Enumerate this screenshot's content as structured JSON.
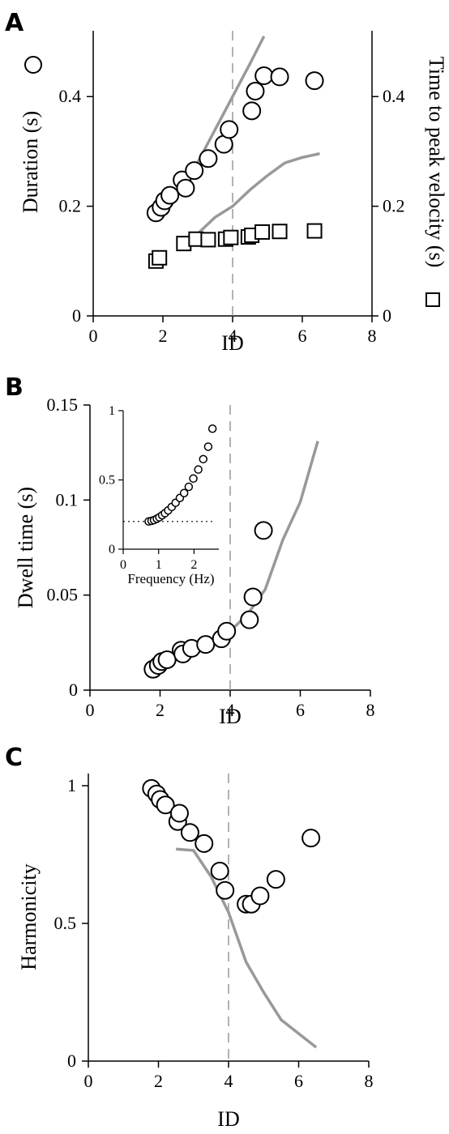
{
  "chart_data": [
    {
      "panel": "A",
      "type": "scatter",
      "xlabel": "ID",
      "ylabel_left": "Duration (s)",
      "ylabel_right": "Time to peak velocity (s)",
      "xlim": [
        0,
        8
      ],
      "ylim": [
        0,
        0.52
      ],
      "x_ticks": [
        "0",
        "2",
        "4",
        "6",
        "8"
      ],
      "y_ticks_left": [
        "0",
        "0.2",
        "0.4"
      ],
      "y_ticks_right": [
        "0",
        "0.2",
        "0.4"
      ],
      "vline_x": 4,
      "legend_markers": [
        "circle",
        "square"
      ],
      "series": [
        {
          "marker": "circle",
          "x": [
            1.8,
            1.95,
            2.05,
            2.2,
            2.55,
            2.65,
            2.9,
            3.3,
            3.75,
            3.9,
            4.55,
            4.65,
            4.9,
            5.35,
            6.35
          ],
          "y": [
            0.188,
            0.198,
            0.21,
            0.22,
            0.248,
            0.233,
            0.265,
            0.287,
            0.313,
            0.34,
            0.374,
            0.41,
            0.438,
            0.436,
            0.429
          ]
        },
        {
          "marker": "square",
          "x": [
            1.8,
            1.9,
            2.6,
            2.95,
            3.3,
            3.8,
            3.95,
            4.45,
            4.55,
            4.85,
            5.35,
            6.35
          ],
          "y": [
            0.1,
            0.106,
            0.132,
            0.14,
            0.139,
            0.14,
            0.143,
            0.144,
            0.147,
            0.153,
            0.154,
            0.155
          ]
        },
        {
          "marker": "line",
          "x": [
            2.5,
            3.0,
            3.5,
            4.0,
            4.5,
            4.9
          ],
          "y": [
            0.23,
            0.28,
            0.34,
            0.4,
            0.46,
            0.51
          ]
        },
        {
          "marker": "line",
          "x": [
            2.5,
            3.0,
            3.5,
            4.0,
            4.5,
            5.0,
            5.5,
            6.0,
            6.5
          ],
          "y": [
            0.12,
            0.15,
            0.18,
            0.2,
            0.23,
            0.256,
            0.279,
            0.289,
            0.296
          ]
        }
      ]
    },
    {
      "panel": "B",
      "type": "scatter",
      "xlabel": "ID",
      "ylabel": "Dwell time (s)",
      "xlim": [
        0,
        8
      ],
      "ylim": [
        0,
        0.15
      ],
      "x_ticks": [
        "0",
        "2",
        "4",
        "6",
        "8"
      ],
      "y_ticks": [
        "0",
        "0.05",
        "0.1",
        "0.15"
      ],
      "vline_x": 4,
      "series": [
        {
          "marker": "circle",
          "x": [
            1.8,
            1.95,
            2.05,
            2.2,
            2.6,
            2.65,
            2.9,
            3.3,
            3.75,
            3.9,
            4.55,
            4.65,
            4.95
          ],
          "y": [
            0.011,
            0.013,
            0.015,
            0.016,
            0.021,
            0.019,
            0.022,
            0.024,
            0.027,
            0.031,
            0.037,
            0.049,
            0.084
          ]
        },
        {
          "marker": "line",
          "x": [
            2.5,
            3.0,
            3.5,
            4.0,
            4.5,
            5.0,
            5.5,
            6.0,
            6.5
          ],
          "y": [
            0.021,
            0.023,
            0.026,
            0.031,
            0.04,
            0.053,
            0.079,
            0.099,
            0.131
          ]
        }
      ],
      "inset": {
        "type": "scatter",
        "xlabel": "Frequency (Hz)",
        "xlim": [
          0,
          2.7
        ],
        "ylim": [
          0,
          1
        ],
        "x_ticks": [
          "0",
          "1",
          "2"
        ],
        "y_ticks": [
          "0",
          "0.5",
          "1"
        ],
        "hline_y": 0.2,
        "x": [
          0.72,
          0.8,
          0.87,
          0.95,
          1.02,
          1.1,
          1.18,
          1.27,
          1.37,
          1.48,
          1.6,
          1.72,
          1.85,
          1.98,
          2.12,
          2.26,
          2.4,
          2.52
        ],
        "y": [
          0.2,
          0.205,
          0.21,
          0.22,
          0.23,
          0.245,
          0.26,
          0.28,
          0.305,
          0.335,
          0.37,
          0.405,
          0.45,
          0.51,
          0.575,
          0.65,
          0.74,
          0.87
        ]
      }
    },
    {
      "panel": "C",
      "type": "scatter",
      "xlabel": "ID",
      "ylabel": "Harmonicity",
      "xlim": [
        0,
        8
      ],
      "ylim": [
        0,
        1
      ],
      "x_ticks": [
        "0",
        "2",
        "4",
        "6",
        "8"
      ],
      "y_ticks": [
        "0",
        "0.5",
        "1"
      ],
      "vline_x": 4,
      "series": [
        {
          "marker": "circle",
          "x": [
            1.8,
            1.95,
            2.05,
            2.2,
            2.55,
            2.6,
            2.9,
            3.3,
            3.75,
            3.9,
            4.5,
            4.65,
            4.9,
            5.35,
            6.35
          ],
          "y": [
            0.99,
            0.97,
            0.95,
            0.93,
            0.87,
            0.9,
            0.83,
            0.79,
            0.69,
            0.62,
            0.57,
            0.57,
            0.6,
            0.66,
            0.81
          ]
        },
        {
          "marker": "line",
          "x": [
            2.5,
            3.0,
            3.5,
            4.0,
            4.5,
            5.0,
            5.5,
            6.0,
            6.5
          ],
          "y": [
            0.77,
            0.765,
            0.67,
            0.54,
            0.36,
            0.25,
            0.15,
            0.1,
            0.05
          ]
        }
      ]
    }
  ]
}
